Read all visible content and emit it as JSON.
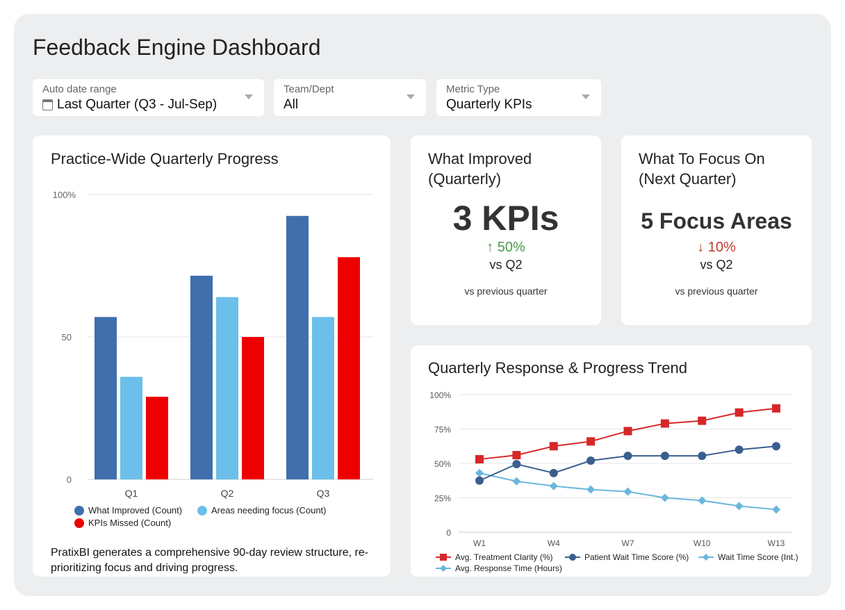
{
  "header": {
    "title": "Feedback Engine Dashboard"
  },
  "filters": [
    {
      "label": "Auto date range",
      "value": "Last Quarter (Q3 - Jul-Sep)",
      "icon": "calendar-icon"
    },
    {
      "label": "Team/Dept",
      "value": "All"
    },
    {
      "label": "Metric Type",
      "value": "Quarterly KPIs"
    }
  ],
  "improved": {
    "title_line1": "What Improved",
    "title_line2": "(Quarterly)",
    "value": "3 KPIs",
    "delta": "↑ 50%",
    "delta_color": "#4a9a4a",
    "vs": "vs Q2",
    "note": "vs previous quarter"
  },
  "focus": {
    "title_line1": "What To Focus On",
    "title_line2": "(Next Quarter)",
    "value": "5 Focus Areas",
    "delta": "↓ 10%",
    "delta_color": "#c0392b",
    "vs": "vs Q2",
    "note": "vs previous quarter"
  },
  "bar_card": {
    "title": "Practice-Wide Quarterly Progress",
    "description": "PratixBI generates a comprehensive 90-day review structure, re-prioritizing focus and driving progress."
  },
  "line_card": {
    "title": "Quarterly Response & Progress Trend"
  },
  "chart_data": [
    {
      "type": "bar",
      "title": "Practice-Wide Quarterly Progress",
      "categories": [
        "Q1",
        "Q2",
        "Q3"
      ],
      "ylim": [
        0,
        100
      ],
      "yticks": [
        "0",
        "50",
        "100%"
      ],
      "ytick_values": [
        0,
        50,
        100
      ],
      "grid": true,
      "legend": "bottom",
      "series": [
        {
          "name": "What Improved (Count)",
          "color": "#3f6fad",
          "values": [
            57,
            71.5,
            92.5
          ]
        },
        {
          "name": "Areas needing focus (Count)",
          "color": "#6bbfea",
          "values": [
            36,
            64,
            57
          ]
        },
        {
          "name": "KPIs Missed (Count)",
          "color": "#ee0000",
          "values": [
            29,
            50,
            78
          ]
        }
      ]
    },
    {
      "type": "line",
      "title": "Quarterly Response & Progress Trend",
      "x_tick_labels": [
        "W1",
        "W4",
        "W7",
        "W10",
        "W13"
      ],
      "ylim": [
        0,
        100
      ],
      "yticks": [
        "0",
        "25%",
        "50%",
        "75%",
        "100%"
      ],
      "ytick_values": [
        0,
        25,
        50,
        75,
        100
      ],
      "grid": true,
      "legend": "bottom",
      "series": [
        {
          "name": "Avg. Treatment Clarity (%)",
          "color": "#d62728",
          "marker": "square",
          "values": [
            53,
            56,
            62.5,
            66,
            73.5,
            79,
            81,
            87,
            90
          ]
        },
        {
          "name": "Patient Wait Time Score (%)",
          "color": "#3a5f8f",
          "marker": "circle",
          "values": [
            37.5,
            49.5,
            43,
            52,
            55.5,
            55.5,
            55.5,
            60,
            62.5
          ]
        },
        {
          "name": "Wait Time Score (Int.)",
          "color": "#6bb6dc",
          "marker": "diamond",
          "values": [
            43,
            37,
            33.5,
            31,
            29.5,
            25,
            23,
            19,
            16.5
          ]
        },
        {
          "name": "Avg. Response Time (Hours)",
          "color": "#6bb6dc",
          "marker": "diamond"
        }
      ]
    }
  ]
}
